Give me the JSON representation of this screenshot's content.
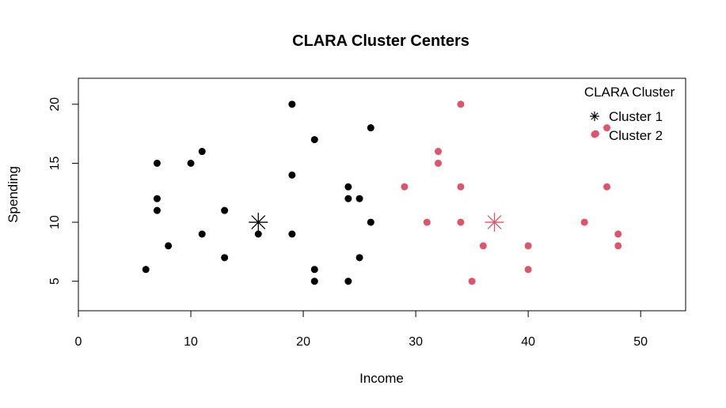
{
  "chart_data": {
    "type": "scatter",
    "title": "CLARA Cluster Centers",
    "xlabel": "Income",
    "ylabel": "Spending",
    "xlim": [
      0,
      54
    ],
    "ylim": [
      2.5,
      22.2
    ],
    "xticks": [
      0,
      10,
      20,
      30,
      40,
      50
    ],
    "yticks": [
      5,
      10,
      15,
      20
    ],
    "grid": false,
    "legend": {
      "title": "CLARA Cluster",
      "placement": "top-right",
      "entries": [
        "Cluster 1",
        "Cluster 2"
      ]
    },
    "series": [
      {
        "name": "Cluster 1",
        "color": "#000000",
        "points": [
          [
            6,
            6
          ],
          [
            7,
            15
          ],
          [
            7,
            12
          ],
          [
            7,
            11
          ],
          [
            8,
            8
          ],
          [
            10,
            15
          ],
          [
            11,
            16
          ],
          [
            11,
            9
          ],
          [
            13,
            11
          ],
          [
            13,
            7
          ],
          [
            16,
            9
          ],
          [
            19,
            20
          ],
          [
            19,
            14
          ],
          [
            19,
            9
          ],
          [
            21,
            17
          ],
          [
            21,
            6
          ],
          [
            21,
            5
          ],
          [
            24,
            13
          ],
          [
            24,
            12
          ],
          [
            24,
            5
          ],
          [
            25,
            12
          ],
          [
            25,
            7
          ],
          [
            26,
            18
          ],
          [
            26,
            10
          ]
        ],
        "center": [
          16,
          10
        ]
      },
      {
        "name": "Cluster 2",
        "color": "#DF536B",
        "points": [
          [
            29,
            13
          ],
          [
            31,
            10
          ],
          [
            32,
            16
          ],
          [
            32,
            15
          ],
          [
            34,
            20
          ],
          [
            34,
            13
          ],
          [
            34,
            10
          ],
          [
            35,
            5
          ],
          [
            36,
            8
          ],
          [
            40,
            8
          ],
          [
            40,
            6
          ],
          [
            45,
            10
          ],
          [
            47,
            18
          ],
          [
            47,
            13
          ],
          [
            48,
            9
          ],
          [
            48,
            8
          ],
          [
            46,
            17.5
          ]
        ],
        "center": [
          37,
          10
        ]
      }
    ]
  }
}
